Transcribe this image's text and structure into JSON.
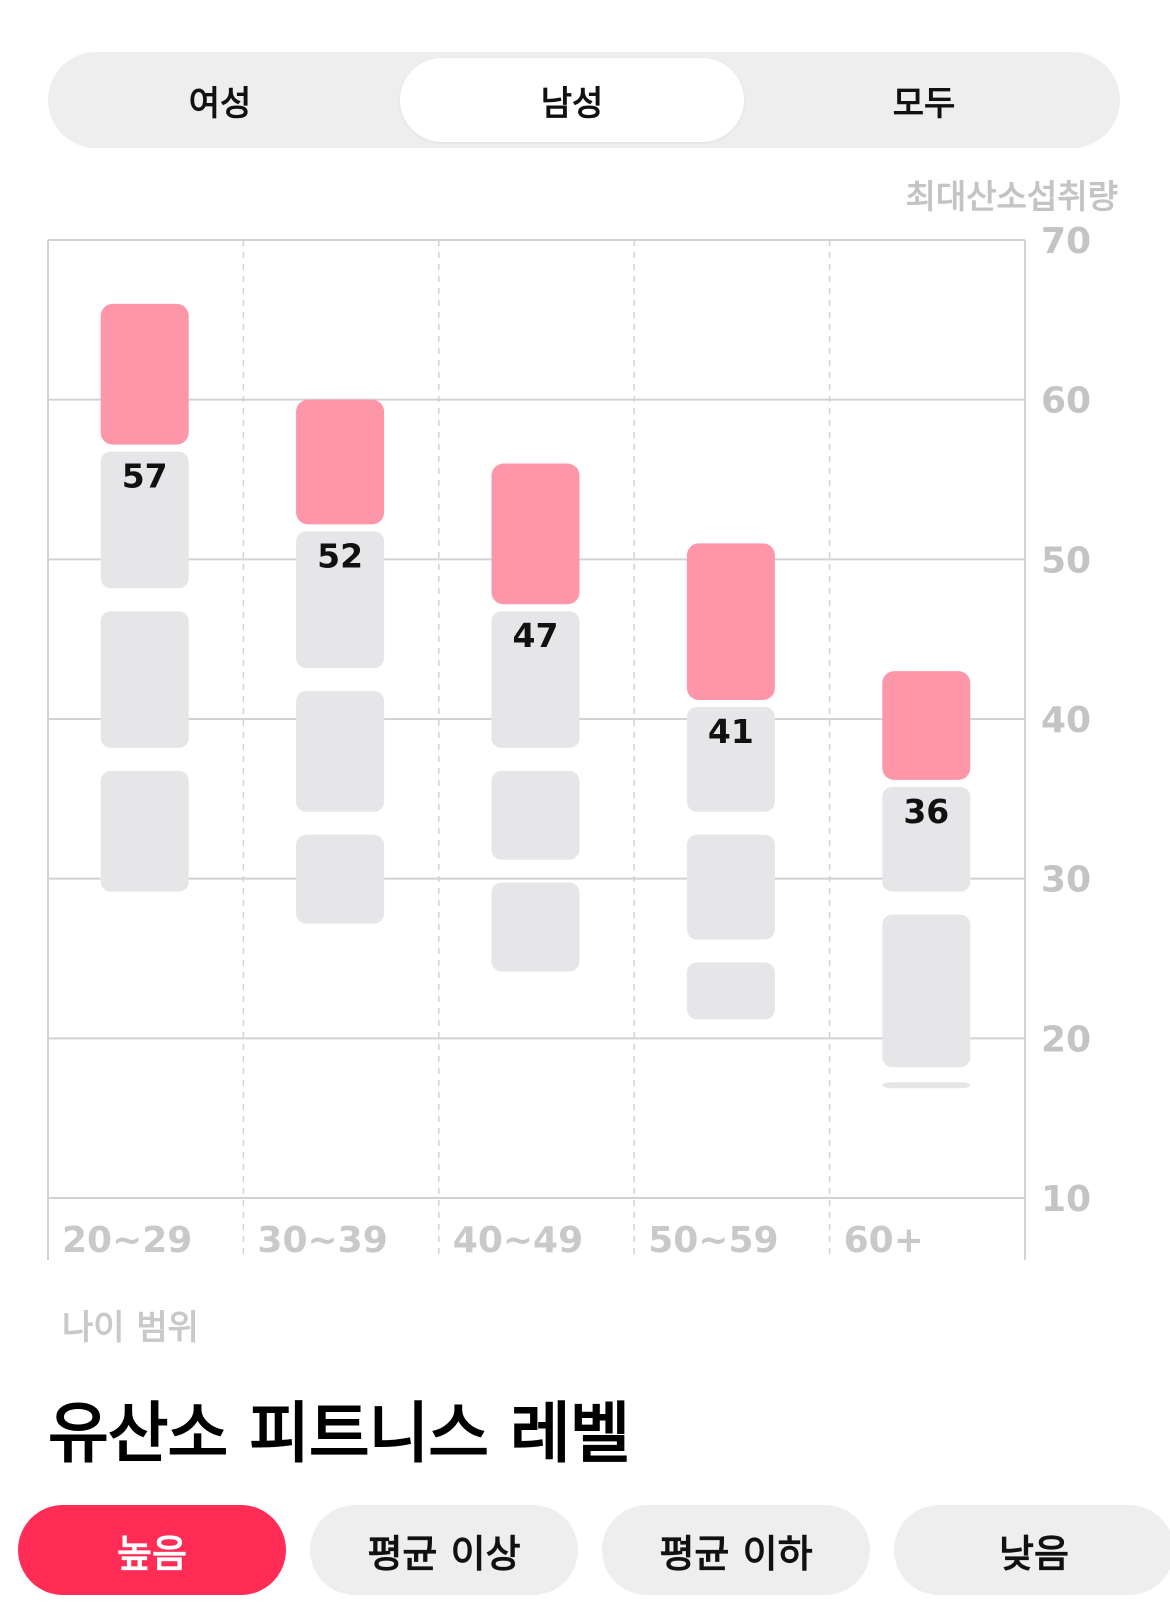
{
  "gender_tabs": [
    "여성",
    "남성",
    "모두"
  ],
  "selected_tab": "남성",
  "chart_data": {
    "type": "range-bar",
    "y_axis_title": "최대산소섭취량",
    "x_axis_title": "나이 범위",
    "y_ticks": [
      70,
      60,
      50,
      40,
      30,
      20,
      10
    ],
    "ylim": [
      10,
      70
    ],
    "categories": [
      "20~29",
      "30~39",
      "40~49",
      "50~59",
      "60+"
    ],
    "highlight_color": "#fd96a9",
    "band_color": "#e6e6e9",
    "bars": [
      {
        "category": "20~29",
        "label": "57",
        "top": 66,
        "highlight_from": 57,
        "segments": [
          [
            57,
            48
          ],
          [
            47,
            38
          ],
          [
            37,
            29
          ]
        ]
      },
      {
        "category": "30~39",
        "label": "52",
        "top": 60,
        "highlight_from": 52,
        "segments": [
          [
            52,
            43
          ],
          [
            42,
            34
          ],
          [
            33,
            27
          ]
        ]
      },
      {
        "category": "40~49",
        "label": "47",
        "top": 56,
        "highlight_from": 47,
        "segments": [
          [
            47,
            38
          ],
          [
            37,
            31
          ],
          [
            30,
            24
          ]
        ]
      },
      {
        "category": "50~59",
        "label": "41",
        "top": 51,
        "highlight_from": 41,
        "segments": [
          [
            41,
            34
          ],
          [
            33,
            26
          ],
          [
            25,
            21
          ]
        ]
      },
      {
        "category": "60+",
        "label": "36",
        "top": 43,
        "highlight_from": 36,
        "segments": [
          [
            36,
            29
          ],
          [
            28,
            18
          ],
          [
            17.5,
            17
          ]
        ]
      }
    ]
  },
  "section_title": "유산소 피트니스 레벨",
  "level_chips": [
    "높음",
    "평균 이상",
    "평균 이하",
    "낮음"
  ],
  "selected_level": "높음"
}
